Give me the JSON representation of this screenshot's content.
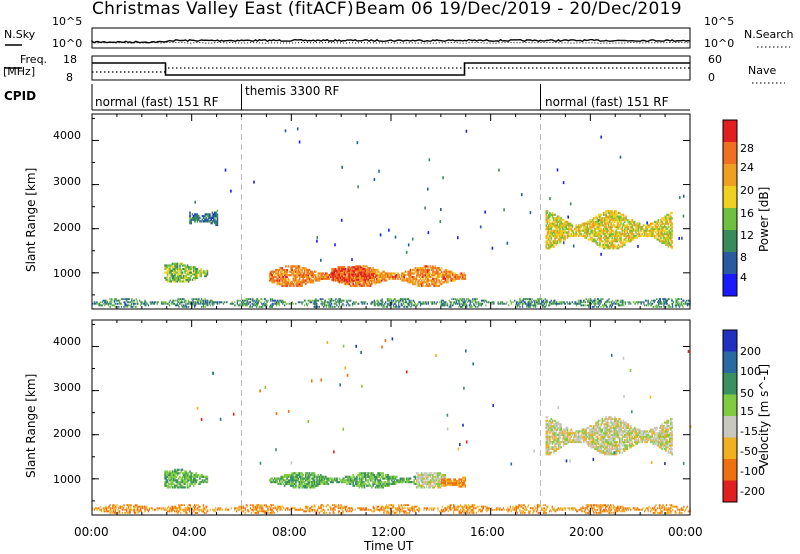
{
  "header": {
    "title_left": "Christmas Valley East (fitACF)",
    "title_right": "Beam 06  19/Dec/2019 - 20/Dec/2019"
  },
  "top_panel": {
    "nsky_label": "N.Sky",
    "nsky_ticks": [
      "10^5",
      "10^0"
    ],
    "nsearch_label": "N.Search",
    "nsearch_ticks": [
      "10^5",
      "10^0"
    ],
    "freq_label": "Freq.",
    "freq_unit": "[MHz]",
    "freq_ticks": [
      "18",
      "8"
    ],
    "nave_label": "Nave",
    "nave_ticks": [
      "60",
      "0"
    ],
    "cpid_label": "CPID",
    "cpid_segments": [
      {
        "label": "normal (fast) 151 RF",
        "start": 0,
        "end": 6
      },
      {
        "label": "themis 3300 RF",
        "start": 6,
        "end": 18
      },
      {
        "label": "normal (fast) 151 RF",
        "start": 18,
        "end": 24
      }
    ]
  },
  "x_axis": {
    "label": "Time UT",
    "tick_labels": [
      "00:00",
      "04:00",
      "08:00",
      "12:00",
      "16:00",
      "20:00",
      "00:00"
    ],
    "range_hours": [
      0,
      24
    ]
  },
  "power_panel": {
    "ylabel": "Slant Range [km]",
    "yticks": [
      "4000",
      "3000",
      "2000",
      "1000"
    ],
    "colorbar_label": "Power [dB]",
    "colorbar_ticks": [
      "28",
      "24",
      "20",
      "16",
      "12",
      "8",
      "4"
    ]
  },
  "velocity_panel": {
    "ylabel": "Slant Range [km]",
    "yticks": [
      "4000",
      "3000",
      "2000",
      "1000"
    ],
    "colorbar_label": "Velocity [m s^-1]",
    "colorbar_ticks": [
      "200",
      "100",
      "50",
      "15",
      "-15",
      "-50",
      "-100",
      "-200"
    ]
  },
  "colors": {
    "power_scale": [
      "#1a1aff",
      "#2a5aa0",
      "#3a8a5a",
      "#70c040",
      "#f0d020",
      "#f0a020",
      "#f07020",
      "#e02020"
    ],
    "velocity_scale": [
      "#2030c0",
      "#2a6aa0",
      "#3a9060",
      "#80cc40",
      "#c8c8c0",
      "#f0b020",
      "#f07010",
      "#e02020"
    ]
  },
  "chart_data": [
    {
      "type": "heatmap",
      "title": "Power",
      "xlabel": "Time UT",
      "ylabel": "Slant Range [km]",
      "xlim": [
        0,
        24
      ],
      "ylim": [
        180,
        4600
      ],
      "colorbar": {
        "label": "Power [dB]",
        "range": [
          0,
          32
        ]
      },
      "regions": [
        {
          "t": [
            2.9,
            4.6
          ],
          "range": [
            750,
            1200
          ],
          "value_db": 14
        },
        {
          "t": [
            3.9,
            5.0
          ],
          "range": [
            1950,
            2500
          ],
          "value_db": 8
        },
        {
          "t": [
            7.1,
            15.0
          ],
          "range": [
            650,
            1150
          ],
          "value_db": 24
        },
        {
          "t": [
            9.6,
            11.3
          ],
          "range": [
            750,
            1150
          ],
          "value_db": 28
        },
        {
          "t": [
            18.2,
            23.3
          ],
          "range": [
            1500,
            2400
          ],
          "value_db": 18
        },
        {
          "t": [
            0,
            24
          ],
          "range": [
            180,
            420
          ],
          "value_db": 10
        }
      ]
    },
    {
      "type": "heatmap",
      "title": "Velocity",
      "xlabel": "Time UT",
      "ylabel": "Slant Range [km]",
      "xlim": [
        0,
        24
      ],
      "ylim": [
        180,
        4600
      ],
      "colorbar": {
        "label": "Velocity [m s^-1]",
        "range": [
          -250,
          250
        ]
      },
      "regions": [
        {
          "t": [
            2.9,
            4.6
          ],
          "range": [
            750,
            1200
          ],
          "value_ms": 50
        },
        {
          "t": [
            7.1,
            13.0
          ],
          "range": [
            750,
            1150
          ],
          "value_ms": 50
        },
        {
          "t": [
            13.0,
            14.2
          ],
          "range": [
            750,
            1150
          ],
          "value_ms": 0
        },
        {
          "t": [
            14.0,
            15.0
          ],
          "range": [
            650,
            1150
          ],
          "value_ms": -50
        },
        {
          "t": [
            18.2,
            23.3
          ],
          "range": [
            1500,
            2400
          ],
          "value_ms": 0
        },
        {
          "t": [
            0,
            24
          ],
          "range": [
            180,
            420
          ],
          "value_ms": -50
        }
      ]
    }
  ]
}
